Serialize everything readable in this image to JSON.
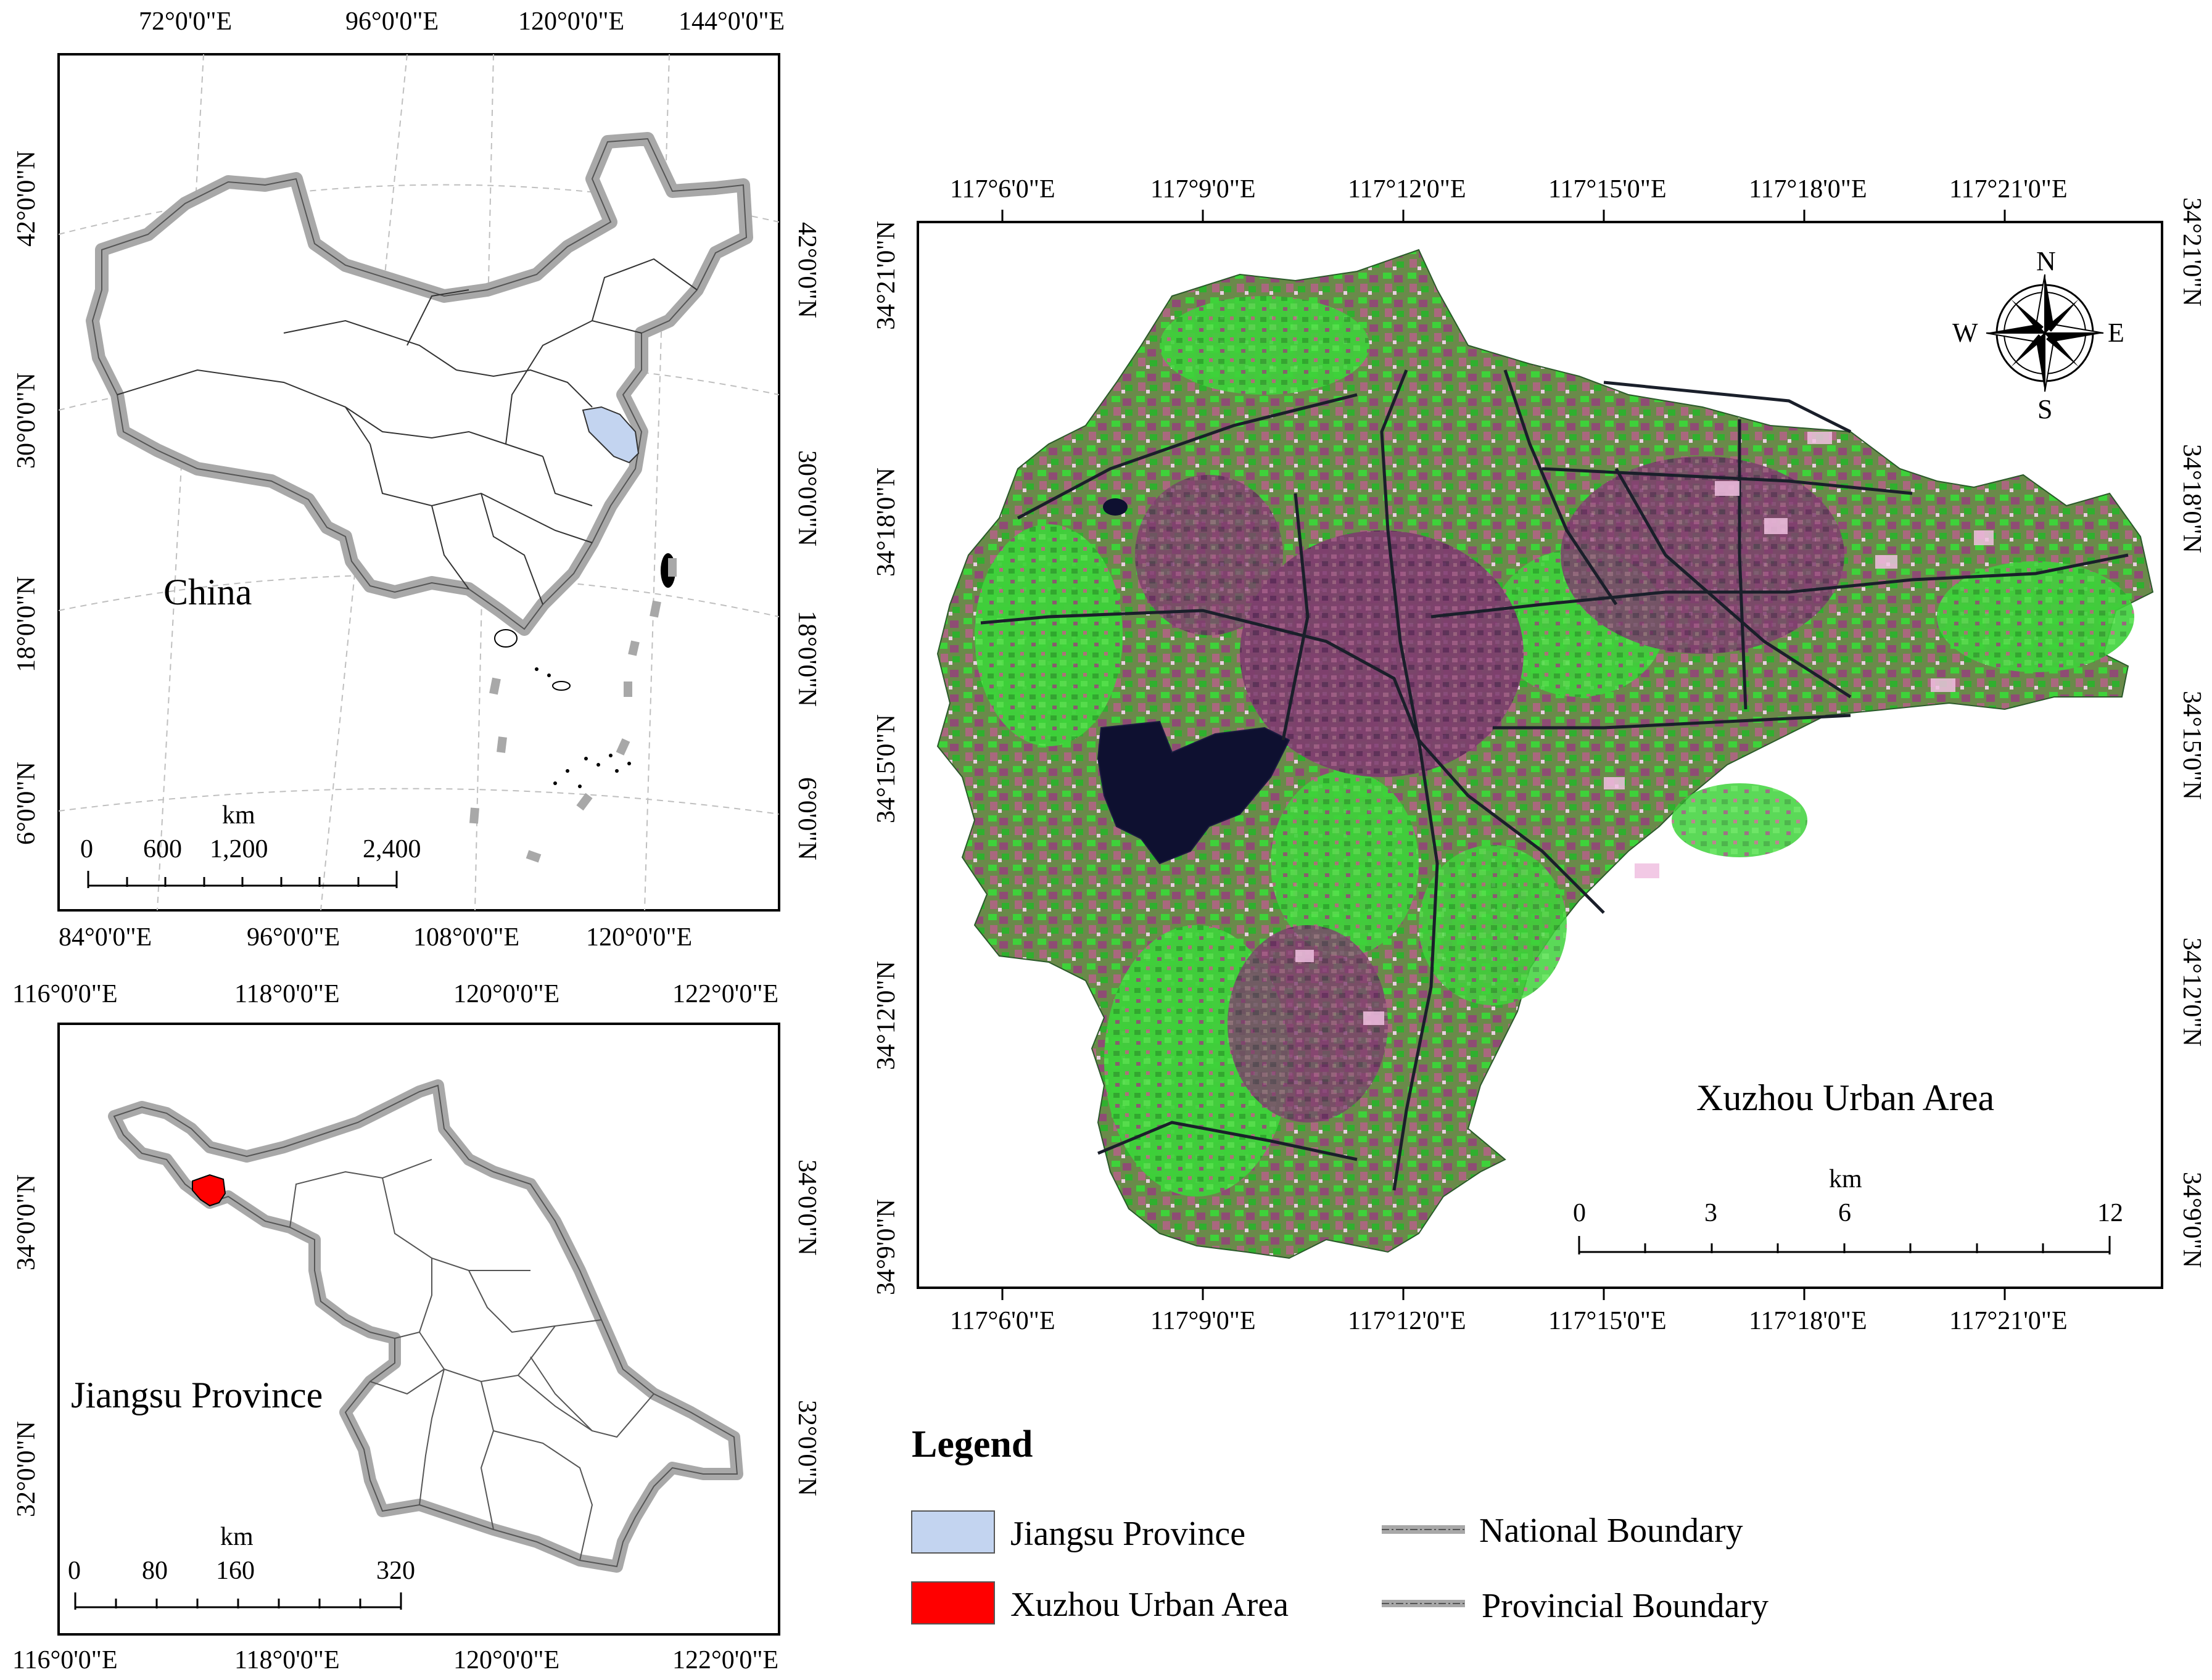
{
  "china_map": {
    "label": "China",
    "top_ticks": [
      "72°0'0\"E",
      "96°0'0\"E",
      "120°0'0\"E",
      "144°0'0\"E"
    ],
    "bottom_ticks": [
      "84°0'0\"E",
      "96°0'0\"E",
      "108°0'0\"E",
      "120°0'0\"E"
    ],
    "left_ticks": [
      "42°0'0\"N",
      "30°0'0\"N",
      "18°0'0\"N",
      "6°0'0\"N"
    ],
    "right_ticks": [
      "42°0'0\"N",
      "30°0'0\"N",
      "18°0'0\"N",
      "6°0'0\"N"
    ],
    "scale": {
      "unit": "km",
      "labels": [
        "0",
        "600",
        "1,200",
        "2,400"
      ]
    }
  },
  "jiangsu_map": {
    "label": "Jiangsu Province",
    "top_ticks": [
      "116°0'0\"E",
      "118°0'0\"E",
      "120°0'0\"E",
      "122°0'0\"E"
    ],
    "bottom_ticks": [
      "116°0'0\"E",
      "118°0'0\"E",
      "120°0'0\"E",
      "122°0'0\"E"
    ],
    "left_ticks": [
      "34°0'0\"N",
      "32°0'0\"N"
    ],
    "right_ticks": [
      "34°0'0\"N",
      "32°0'0\"N"
    ],
    "scale": {
      "unit": "km",
      "labels": [
        "0",
        "80",
        "160",
        "320"
      ]
    }
  },
  "xuzhou_map": {
    "label": "Xuzhou Urban Area",
    "top_ticks": [
      "117°6'0\"E",
      "117°9'0\"E",
      "117°12'0\"E",
      "117°15'0\"E",
      "117°18'0\"E",
      "117°21'0\"E"
    ],
    "bottom_ticks": [
      "117°6'0\"E",
      "117°9'0\"E",
      "117°12'0\"E",
      "117°15'0\"E",
      "117°18'0\"E",
      "117°21'0\"E"
    ],
    "left_ticks": [
      "34°21'0\"N",
      "34°18'0\"N",
      "34°15'0\"N",
      "34°12'0\"N",
      "34°9'0\"N"
    ],
    "right_ticks": [
      "34°21'0\"N",
      "34°18'0\"N",
      "34°15'0\"N",
      "34°12'0\"N",
      "34°9'0\"N"
    ],
    "compass": {
      "n": "N",
      "s": "S",
      "e": "E",
      "w": "W"
    },
    "scale": {
      "unit": "km",
      "labels": [
        "0",
        "3",
        "6",
        "12"
      ]
    }
  },
  "legend": {
    "title": "Legend",
    "items": [
      {
        "label": "Jiangsu Province",
        "kind": "fill",
        "color": "#c3d4f0"
      },
      {
        "label": "Xuzhou Urban Area",
        "kind": "fill",
        "color": "#ff0000"
      },
      {
        "label": "National Boundary",
        "kind": "line",
        "color": "#999999"
      },
      {
        "label": "Provincial Boundary",
        "kind": "line",
        "color": "#999999"
      }
    ]
  },
  "colors": {
    "vegetation": "#3ed23a",
    "urban": "#7a3a6a",
    "water": "#0e1030",
    "highlight_red": "#ff0000",
    "highlight_blue": "#c3d4f0",
    "boundary_gray": "#a8a8a8"
  }
}
